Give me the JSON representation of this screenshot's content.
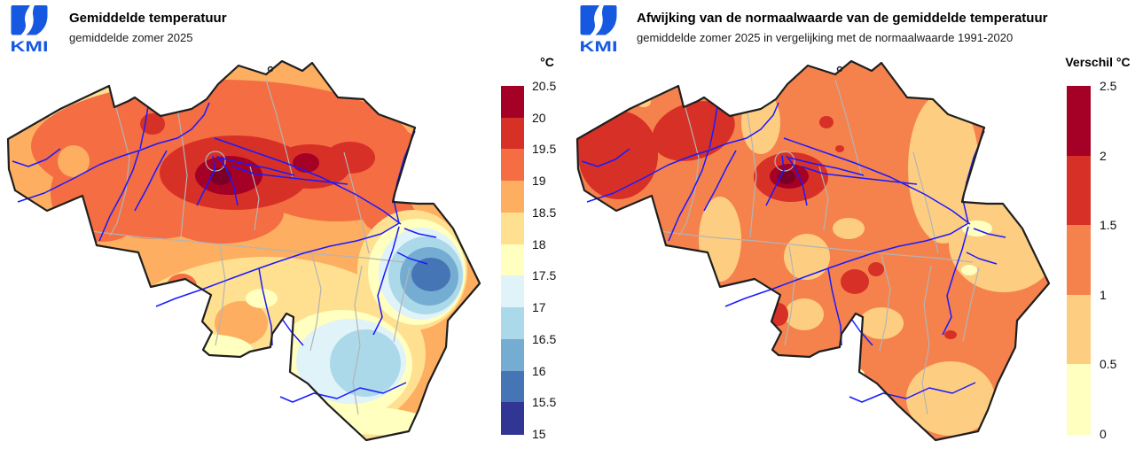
{
  "panels": [
    {
      "id": "temperature",
      "logo_text": "KMI",
      "title": "Gemiddelde temperatuur",
      "subtitle": "gemiddelde zomer 2025",
      "legend": {
        "unit_label": "°C",
        "tick_labels": [
          "20.5",
          "20",
          "19.5",
          "19",
          "18.5",
          "18",
          "17.5",
          "17",
          "16.5",
          "16",
          "15.5",
          "15"
        ],
        "band_colors": [
          "#a50026",
          "#d73027",
          "#f46d43",
          "#fdae61",
          "#fee090",
          "#ffffbf",
          "#e0f3f8",
          "#abd9e9",
          "#74add1",
          "#4575b4",
          "#313695"
        ]
      }
    },
    {
      "id": "anomaly",
      "logo_text": "KMI",
      "title": "Afwijking van de normaalwaarde van de gemiddelde temperatuur",
      "subtitle": "gemiddelde zomer 2025 in vergelijking met de normaalwaarde 1991-2020",
      "legend": {
        "unit_label": "Verschil °C",
        "tick_labels": [
          "2.5",
          "2",
          "1.5",
          "1",
          "0.5",
          "0"
        ],
        "band_colors": [
          "#a50026",
          "#d73027",
          "#f5814d",
          "#fdce81",
          "#ffffbf"
        ]
      }
    }
  ],
  "map_style": {
    "river_color": "#1a1aff",
    "province_border_color": "#b4b4b4",
    "country_border_color": "#1f1f1f",
    "hotspot_core_color": "#7a0026",
    "logo_color": "#1659e0",
    "background": "#ffffff"
  }
}
